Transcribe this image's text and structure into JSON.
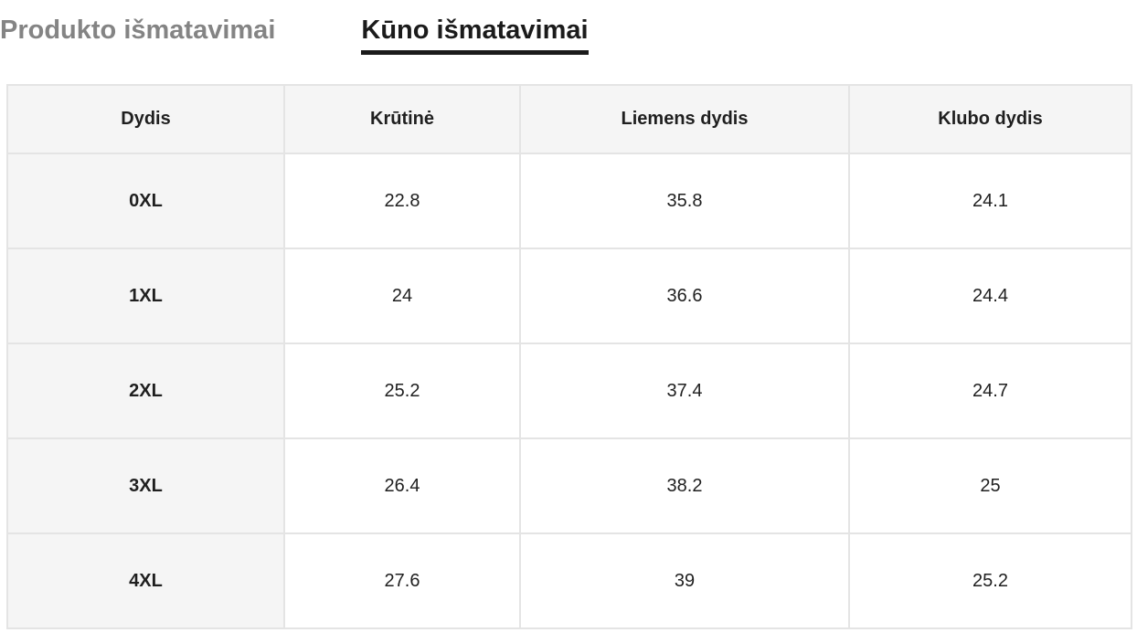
{
  "tabs": {
    "product": {
      "label": "Produkto išmatavimai",
      "active": false
    },
    "body": {
      "label": "Kūno išmatavimai",
      "active": true
    }
  },
  "table": {
    "columns": [
      "Dydis",
      "Krūtinė",
      "Liemens dydis",
      "Klubo dydis"
    ],
    "rows": [
      [
        "0XL",
        "22.8",
        "35.8",
        "24.1"
      ],
      [
        "1XL",
        "24",
        "36.6",
        "24.4"
      ],
      [
        "2XL",
        "25.2",
        "37.4",
        "24.7"
      ],
      [
        "3XL",
        "26.4",
        "38.2",
        "25"
      ],
      [
        "4XL",
        "27.6",
        "39",
        "25.2"
      ]
    ]
  },
  "colors": {
    "active_tab": "#1b1b1b",
    "inactive_tab": "#848484",
    "cell_shade": "#f5f5f5",
    "border": "#e4e4e4"
  }
}
